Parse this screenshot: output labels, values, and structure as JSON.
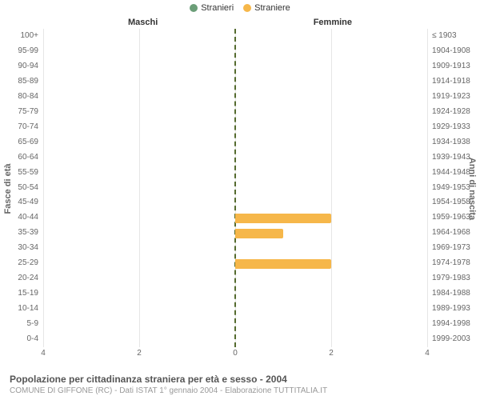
{
  "chart": {
    "type": "population-pyramid",
    "legend": [
      {
        "label": "Stranieri",
        "color": "#6b9e78"
      },
      {
        "label": "Straniere",
        "color": "#f6b74a"
      }
    ],
    "side_labels": {
      "left": "Maschi",
      "right": "Femmine"
    },
    "yaxis_titles": {
      "left": "Fasce di età",
      "right": "Anni di nascita"
    },
    "x_max": 4,
    "x_ticks": [
      4,
      2,
      0,
      2,
      4
    ],
    "background_color": "#ffffff",
    "grid_color": "#e6e6e6",
    "center_line_color": "#556b2f",
    "text_color": "#666666",
    "rows": [
      {
        "age": "100+",
        "birth": "≤ 1903",
        "male": 0,
        "female": 0
      },
      {
        "age": "95-99",
        "birth": "1904-1908",
        "male": 0,
        "female": 0
      },
      {
        "age": "90-94",
        "birth": "1909-1913",
        "male": 0,
        "female": 0
      },
      {
        "age": "85-89",
        "birth": "1914-1918",
        "male": 0,
        "female": 0
      },
      {
        "age": "80-84",
        "birth": "1919-1923",
        "male": 0,
        "female": 0
      },
      {
        "age": "75-79",
        "birth": "1924-1928",
        "male": 0,
        "female": 0
      },
      {
        "age": "70-74",
        "birth": "1929-1933",
        "male": 0,
        "female": 0
      },
      {
        "age": "65-69",
        "birth": "1934-1938",
        "male": 0,
        "female": 0
      },
      {
        "age": "60-64",
        "birth": "1939-1943",
        "male": 0,
        "female": 0
      },
      {
        "age": "55-59",
        "birth": "1944-1948",
        "male": 0,
        "female": 0
      },
      {
        "age": "50-54",
        "birth": "1949-1953",
        "male": 0,
        "female": 0
      },
      {
        "age": "45-49",
        "birth": "1954-1958",
        "male": 0,
        "female": 0
      },
      {
        "age": "40-44",
        "birth": "1959-1963",
        "male": 0,
        "female": 2
      },
      {
        "age": "35-39",
        "birth": "1964-1968",
        "male": 0,
        "female": 1
      },
      {
        "age": "30-34",
        "birth": "1969-1973",
        "male": 0,
        "female": 0
      },
      {
        "age": "25-29",
        "birth": "1974-1978",
        "male": 0,
        "female": 2
      },
      {
        "age": "20-24",
        "birth": "1979-1983",
        "male": 0,
        "female": 0
      },
      {
        "age": "15-19",
        "birth": "1984-1988",
        "male": 0,
        "female": 0
      },
      {
        "age": "10-14",
        "birth": "1989-1993",
        "male": 0,
        "female": 0
      },
      {
        "age": "5-9",
        "birth": "1994-1998",
        "male": 0,
        "female": 0
      },
      {
        "age": "0-4",
        "birth": "1999-2003",
        "male": 0,
        "female": 0
      }
    ]
  },
  "footer": {
    "title": "Popolazione per cittadinanza straniera per età e sesso - 2004",
    "subtitle": "COMUNE DI GIFFONE (RC) - Dati ISTAT 1° gennaio 2004 - Elaborazione TUTTITALIA.IT"
  }
}
